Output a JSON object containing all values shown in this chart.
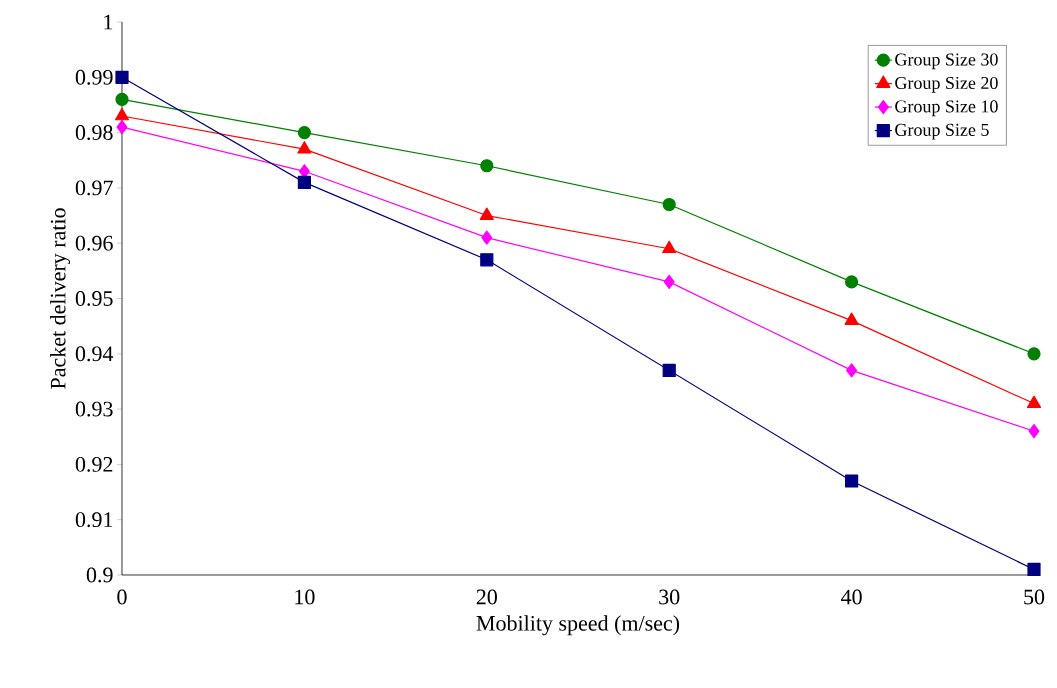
{
  "chart_data": {
    "type": "line",
    "xlabel": "Mobility speed (m/sec)",
    "ylabel": "Packet delivery ratio",
    "x": [
      0,
      10,
      20,
      30,
      40,
      50
    ],
    "series": [
      {
        "name": "Group Size 30",
        "color": "#008000",
        "marker": "circle",
        "values": [
          0.986,
          0.98,
          0.974,
          0.967,
          0.953,
          0.94
        ]
      },
      {
        "name": "Group Size 20",
        "color": "#ff0000",
        "marker": "triangle",
        "values": [
          0.983,
          0.977,
          0.965,
          0.959,
          0.946,
          0.931
        ]
      },
      {
        "name": "Group Size 10",
        "color": "#ff00ff",
        "marker": "diamond",
        "values": [
          0.981,
          0.973,
          0.961,
          0.953,
          0.937,
          0.926
        ]
      },
      {
        "name": "Group Size 5",
        "color": "#000080",
        "marker": "square",
        "values": [
          0.99,
          0.971,
          0.957,
          0.937,
          0.917,
          0.901
        ]
      }
    ],
    "xlim": [
      0,
      50
    ],
    "xticks": [
      0,
      10,
      20,
      30,
      40,
      50
    ],
    "ylim": [
      0.9,
      1
    ],
    "yticks": [
      0.9,
      0.91,
      0.92,
      0.93,
      0.94,
      0.95,
      0.96,
      0.97,
      0.98,
      0.99,
      1
    ],
    "grid": false,
    "legend": "top right",
    "line_style": "solid"
  }
}
